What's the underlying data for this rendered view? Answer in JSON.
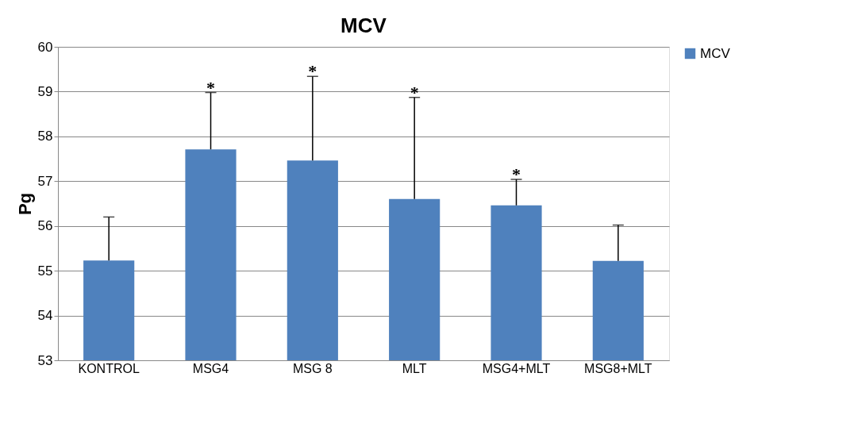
{
  "chart_data": {
    "type": "bar",
    "title": "MCV",
    "ylabel": "Pg",
    "categories": [
      "KONTROL",
      "MSG4",
      "MSG 8",
      "MLT",
      "MSG4+MLT",
      "MSG8+MLT"
    ],
    "series": [
      {
        "name": "MCV",
        "color": "#4f81bd",
        "values": [
          55.23,
          57.71,
          57.46,
          56.6,
          56.46,
          55.22
        ],
        "errors": [
          [
            55.23,
            56.2
          ],
          [
            57.71,
            58.98
          ],
          [
            57.46,
            59.34
          ],
          [
            56.6,
            58.87
          ],
          [
            56.46,
            57.04
          ],
          [
            55.22,
            56.02
          ]
        ]
      }
    ],
    "ylim": [
      53,
      60
    ],
    "yticks": [
      53,
      54,
      55,
      56,
      57,
      58,
      59,
      60
    ],
    "grid": "y",
    "legend": "right",
    "annotations": [
      {
        "text": "*",
        "x": "MSG4",
        "y": 58.98
      },
      {
        "text": "*",
        "x": "MSG 8",
        "y": 59.34
      },
      {
        "text": "*",
        "x": "MLT",
        "y": 58.87
      },
      {
        "text": "*",
        "x": "MSG4+MLT",
        "y": 57.04
      }
    ]
  }
}
